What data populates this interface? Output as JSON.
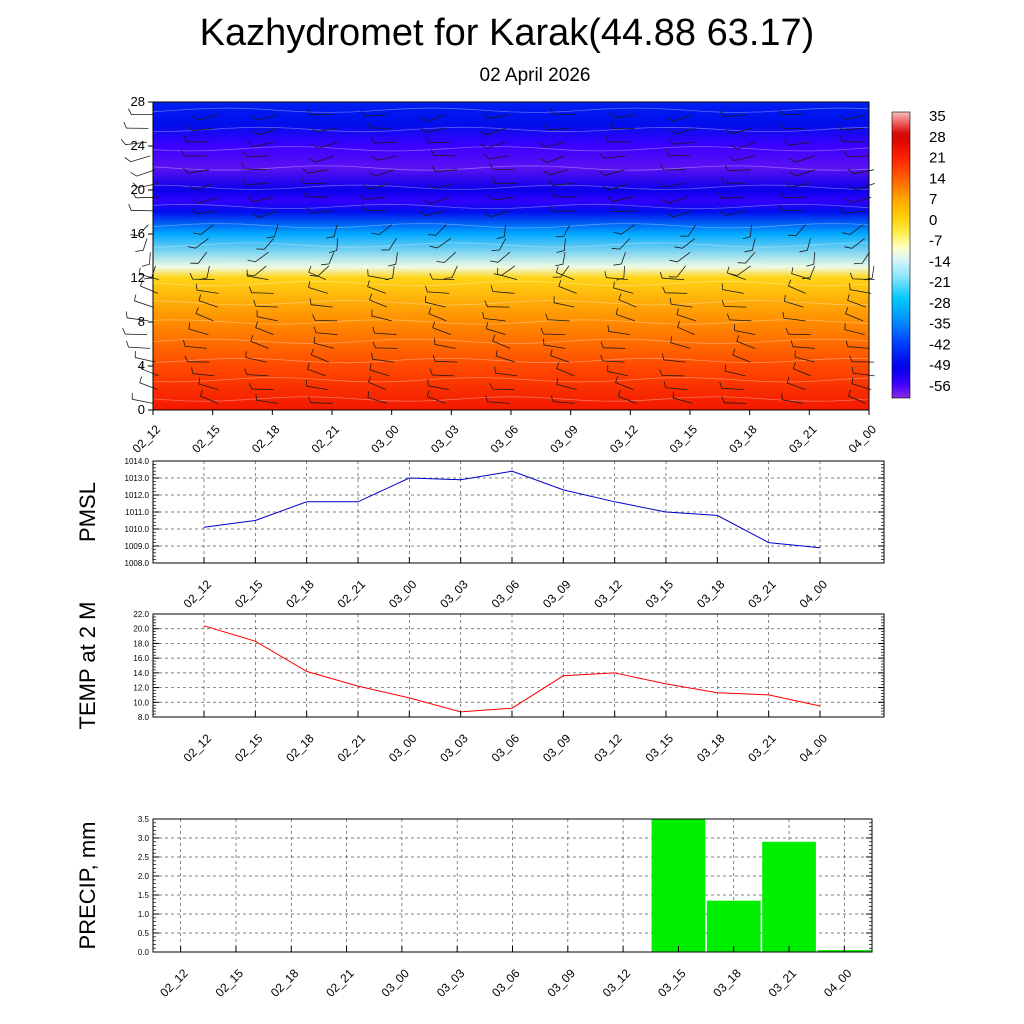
{
  "header": {
    "title": "Kazhydromet for Karak(44.88 63.17)",
    "date": "02 April 2026"
  },
  "chart_data": [
    {
      "type": "heatmap",
      "title": "",
      "x": [
        "02_12",
        "02_15",
        "02_18",
        "02_21",
        "03_00",
        "03_03",
        "03_06",
        "03_09",
        "03_12",
        "03_15",
        "03_18",
        "03_21",
        "04_00"
      ],
      "y_ticks": [
        0,
        4,
        8,
        12,
        16,
        20,
        24,
        28
      ],
      "ylim": [
        0,
        28
      ],
      "colorbar": {
        "labels": [
          "35",
          "28",
          "21",
          "14",
          "7",
          "0",
          "-7",
          "-14",
          "-21",
          "-28",
          "-35",
          "-42",
          "-49",
          "-56"
        ],
        "range": [
          -63,
          38
        ]
      },
      "temperature_profile": [
        {
          "level": 0,
          "value": 24
        },
        {
          "level": 4,
          "value": 17
        },
        {
          "level": 8,
          "value": 10
        },
        {
          "level": 12,
          "value": 0
        },
        {
          "level": 13,
          "value": -12
        },
        {
          "level": 16,
          "value": -32
        },
        {
          "level": 18,
          "value": -50
        },
        {
          "level": 19,
          "value": -57
        },
        {
          "level": 20,
          "value": -53
        },
        {
          "level": 22,
          "value": -60
        },
        {
          "level": 24,
          "value": -58
        },
        {
          "level": 26,
          "value": -50
        },
        {
          "level": 28,
          "value": -48
        }
      ],
      "wind_barbs": true,
      "colors": {
        "low": "#8a2be2",
        "mid": "#ffffc8",
        "high": "#ff0000"
      }
    },
    {
      "type": "line",
      "ylabel": "PMSL",
      "categories": [
        "02_12",
        "02_15",
        "02_18",
        "02_21",
        "03_00",
        "03_03",
        "03_06",
        "03_09",
        "03_12",
        "03_15",
        "03_18",
        "03_21",
        "04_00"
      ],
      "values": [
        1010.1,
        1010.5,
        1011.6,
        1011.6,
        1013.0,
        1012.9,
        1013.4,
        1012.3,
        1011.6,
        1011.0,
        1010.8,
        1009.2,
        1008.9
      ],
      "ylim": [
        1008.0,
        1014.0
      ],
      "yticks": [
        "1014.0",
        "1013.0",
        "1012.0",
        "1011.0",
        "1010.0",
        "1009.0",
        "1008.0"
      ],
      "color": "#0000cc",
      "grid": true
    },
    {
      "type": "line",
      "ylabel": "TEMP at 2 M",
      "categories": [
        "02_12",
        "02_15",
        "02_18",
        "02_21",
        "03_00",
        "03_03",
        "03_06",
        "03_09",
        "03_12",
        "03_15",
        "03_18",
        "03_21",
        "04_00"
      ],
      "values": [
        20.4,
        18.3,
        14.2,
        12.2,
        10.6,
        8.7,
        9.2,
        13.6,
        14.0,
        12.5,
        11.3,
        11.0,
        9.5
      ],
      "ylim": [
        8.0,
        22.0
      ],
      "yticks": [
        "22.0",
        "20.0",
        "18.0",
        "16.0",
        "14.0",
        "12.0",
        "10.0",
        "8.0"
      ],
      "color": "#ff0000",
      "grid": true
    },
    {
      "type": "bar",
      "ylabel": "PRECIP, mm",
      "categories": [
        "02_12",
        "02_15",
        "02_18",
        "02_21",
        "03_00",
        "03_03",
        "03_06",
        "03_09",
        "03_12",
        "03_15",
        "03_18",
        "03_21",
        "04_00"
      ],
      "values": [
        0,
        0,
        0,
        0,
        0,
        0,
        0,
        0,
        0,
        3.5,
        1.35,
        2.9,
        0.05
      ],
      "ylim": [
        0.0,
        3.5
      ],
      "yticks": [
        "3.5",
        "3.0",
        "2.5",
        "2.0",
        "1.5",
        "1.0",
        "0.5",
        "0.0"
      ],
      "color": "#00ee00",
      "grid": true
    }
  ]
}
